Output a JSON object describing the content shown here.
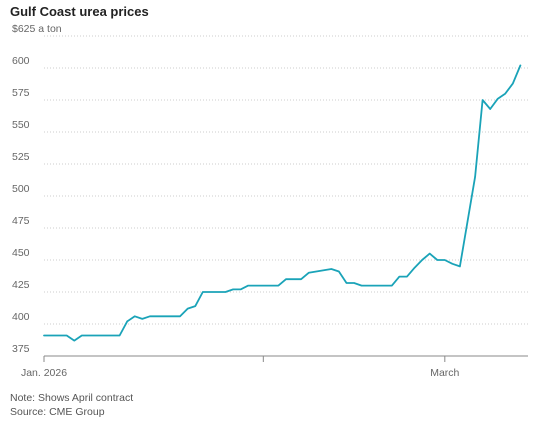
{
  "header": {
    "title": "Gulf Coast urea prices"
  },
  "notes": {
    "note": "Note: Shows April contract",
    "source": "Source: CME Group"
  },
  "colors": {
    "line": "#1aa3b8",
    "grid": "#cccccc",
    "text": "#666666"
  },
  "chart_data": {
    "type": "line",
    "title": "Gulf Coast urea prices",
    "y_unit_label": "$625 a ton",
    "ylim": [
      375,
      625
    ],
    "yticks": [
      375,
      400,
      425,
      450,
      475,
      500,
      525,
      550,
      575,
      600,
      625
    ],
    "ytick_labels": [
      "375",
      "400",
      "425",
      "450",
      "475",
      "500",
      "525",
      "550",
      "575",
      "600",
      "$625 a ton"
    ],
    "xlim": [
      0,
      64
    ],
    "xticks": [
      0,
      29,
      53
    ],
    "xtick_labels": [
      "Jan. 2026",
      "",
      "March"
    ],
    "grid": true,
    "series": [
      {
        "x": [
          0,
          1,
          2,
          3,
          4,
          5,
          6,
          7,
          8,
          9,
          10,
          11,
          12,
          13,
          14,
          15,
          16,
          17,
          18,
          19,
          20,
          21,
          22,
          23,
          24,
          25,
          26,
          27,
          28,
          29,
          30,
          31,
          32,
          33,
          34,
          35,
          36,
          37,
          38,
          39,
          40,
          41,
          42,
          43,
          44,
          45,
          46,
          47,
          48,
          49,
          50,
          51,
          52,
          53,
          54,
          55,
          56,
          57,
          58,
          59,
          60,
          61,
          62,
          63
        ],
        "values": [
          391,
          391,
          391,
          391,
          387,
          391,
          391,
          391,
          391,
          391,
          391,
          402,
          406,
          404,
          406,
          406,
          406,
          406,
          406,
          412,
          414,
          425,
          425,
          425,
          425,
          427,
          427,
          430,
          430,
          430,
          430,
          430,
          435,
          435,
          435,
          440,
          441,
          442,
          443,
          441,
          432,
          432,
          430,
          430,
          430,
          430,
          430,
          437,
          437,
          444,
          450,
          455,
          450,
          450,
          447,
          445,
          480,
          515,
          575,
          568,
          576,
          580,
          588,
          602
        ]
      }
    ]
  }
}
